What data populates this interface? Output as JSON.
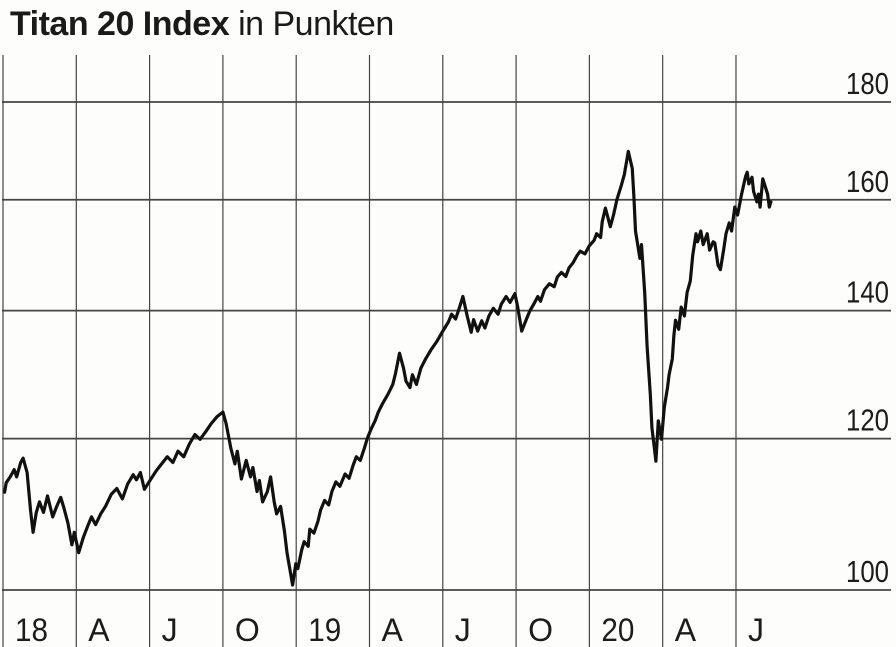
{
  "header": {
    "title": "Titan 20 Index",
    "subtitle": "in Punkten"
  },
  "chart_data": {
    "type": "line",
    "title": "Titan 20 Index",
    "subtitle": "in Punkten",
    "xlabel": "",
    "ylabel": "Punkten",
    "y_scale": "log",
    "y_axis_side": "right",
    "ylim": [
      100,
      190
    ],
    "y_ticks": [
      100,
      120,
      140,
      160,
      180
    ],
    "x_tick_labels": [
      "18",
      "A",
      "J",
      "O",
      "19",
      "A",
      "J",
      "O",
      "20",
      "A",
      "J"
    ],
    "x_tick_dates": [
      "2018-01-01",
      "2018-04-01",
      "2018-07-01",
      "2018-10-01",
      "2019-01-01",
      "2019-04-01",
      "2019-07-01",
      "2019-10-01",
      "2020-01-01",
      "2020-04-01",
      "2020-07-01"
    ],
    "grid": "on",
    "legend": "none",
    "line_color": "#111111",
    "grid_color": "#444444",
    "text_color": "#1c1c1c",
    "series": [
      {
        "name": "Titan 20 Index",
        "points": [
          [
            "2018-01-03",
            112.5
          ],
          [
            "2018-01-05",
            113.8
          ],
          [
            "2018-01-10",
            114.6
          ],
          [
            "2018-01-15",
            115.6
          ],
          [
            "2018-01-18",
            114.6
          ],
          [
            "2018-01-23",
            116.6
          ],
          [
            "2018-01-26",
            117.2
          ],
          [
            "2018-01-31",
            115.2
          ],
          [
            "2018-02-05",
            110.0
          ],
          [
            "2018-02-08",
            107.2
          ],
          [
            "2018-02-12",
            109.8
          ],
          [
            "2018-02-16",
            111.2
          ],
          [
            "2018-02-21",
            109.8
          ],
          [
            "2018-02-26",
            112.0
          ],
          [
            "2018-03-02",
            109.2
          ],
          [
            "2018-03-07",
            110.6
          ],
          [
            "2018-03-12",
            111.8
          ],
          [
            "2018-03-16",
            110.4
          ],
          [
            "2018-03-21",
            108.4
          ],
          [
            "2018-03-26",
            105.6
          ],
          [
            "2018-03-29",
            107.2
          ],
          [
            "2018-04-04",
            104.6
          ],
          [
            "2018-04-10",
            106.6
          ],
          [
            "2018-04-16",
            108.2
          ],
          [
            "2018-04-20",
            109.2
          ],
          [
            "2018-04-25",
            108.2
          ],
          [
            "2018-05-01",
            109.6
          ],
          [
            "2018-05-07",
            110.6
          ],
          [
            "2018-05-14",
            112.2
          ],
          [
            "2018-05-21",
            113.0
          ],
          [
            "2018-05-28",
            111.6
          ],
          [
            "2018-06-04",
            113.6
          ],
          [
            "2018-06-11",
            114.9
          ],
          [
            "2018-06-15",
            114.2
          ],
          [
            "2018-06-20",
            115.2
          ],
          [
            "2018-06-25",
            112.9
          ],
          [
            "2018-07-02",
            114.2
          ],
          [
            "2018-07-09",
            115.4
          ],
          [
            "2018-07-16",
            116.4
          ],
          [
            "2018-07-23",
            117.4
          ],
          [
            "2018-07-30",
            116.6
          ],
          [
            "2018-08-06",
            118.2
          ],
          [
            "2018-08-13",
            117.4
          ],
          [
            "2018-08-20",
            119.2
          ],
          [
            "2018-08-27",
            120.6
          ],
          [
            "2018-09-03",
            119.9
          ],
          [
            "2018-09-10",
            121.0
          ],
          [
            "2018-09-17",
            122.2
          ],
          [
            "2018-09-24",
            123.2
          ],
          [
            "2018-10-01",
            123.9
          ],
          [
            "2018-10-05",
            122.2
          ],
          [
            "2018-10-11",
            118.6
          ],
          [
            "2018-10-16",
            116.4
          ],
          [
            "2018-10-19",
            118.2
          ],
          [
            "2018-10-24",
            114.3
          ],
          [
            "2018-10-30",
            116.9
          ],
          [
            "2018-11-05",
            114.6
          ],
          [
            "2018-11-08",
            115.9
          ],
          [
            "2018-11-13",
            112.6
          ],
          [
            "2018-11-16",
            114.1
          ],
          [
            "2018-11-20",
            111.2
          ],
          [
            "2018-11-26",
            112.6
          ],
          [
            "2018-11-30",
            114.6
          ],
          [
            "2018-12-04",
            111.2
          ],
          [
            "2018-12-07",
            109.6
          ],
          [
            "2018-12-12",
            110.6
          ],
          [
            "2018-12-17",
            107.2
          ],
          [
            "2018-12-20",
            104.6
          ],
          [
            "2018-12-27",
            100.6
          ],
          [
            "2018-12-31",
            103.2
          ],
          [
            "2019-01-03",
            102.6
          ],
          [
            "2019-01-08",
            105.0
          ],
          [
            "2019-01-11",
            106.0
          ],
          [
            "2019-01-16",
            105.4
          ],
          [
            "2019-01-18",
            107.6
          ],
          [
            "2019-01-23",
            107.1
          ],
          [
            "2019-01-28",
            108.6
          ],
          [
            "2019-02-01",
            110.1
          ],
          [
            "2019-02-06",
            111.4
          ],
          [
            "2019-02-11",
            110.8
          ],
          [
            "2019-02-15",
            112.6
          ],
          [
            "2019-02-20",
            113.9
          ],
          [
            "2019-02-25",
            113.3
          ],
          [
            "2019-03-01",
            115.0
          ],
          [
            "2019-03-06",
            114.4
          ],
          [
            "2019-03-11",
            116.2
          ],
          [
            "2019-03-15",
            117.4
          ],
          [
            "2019-03-20",
            116.9
          ],
          [
            "2019-03-25",
            118.6
          ],
          [
            "2019-03-29",
            120.1
          ],
          [
            "2019-04-03",
            121.4
          ],
          [
            "2019-04-08",
            122.6
          ],
          [
            "2019-04-12",
            123.9
          ],
          [
            "2019-04-17",
            125.1
          ],
          [
            "2019-04-24",
            126.6
          ],
          [
            "2019-04-30",
            128.1
          ],
          [
            "2019-05-03",
            129.8
          ],
          [
            "2019-05-08",
            133.0
          ],
          [
            "2019-05-13",
            130.6
          ],
          [
            "2019-05-16",
            128.6
          ],
          [
            "2019-05-21",
            127.6
          ],
          [
            "2019-05-24",
            129.6
          ],
          [
            "2019-05-29",
            128.1
          ],
          [
            "2019-06-04",
            130.6
          ],
          [
            "2019-06-10",
            132.1
          ],
          [
            "2019-06-17",
            133.6
          ],
          [
            "2019-06-24",
            134.9
          ],
          [
            "2019-07-01",
            136.6
          ],
          [
            "2019-07-08",
            138.1
          ],
          [
            "2019-07-12",
            139.4
          ],
          [
            "2019-07-17",
            138.6
          ],
          [
            "2019-07-22",
            140.6
          ],
          [
            "2019-07-26",
            142.4
          ],
          [
            "2019-08-01",
            139.1
          ],
          [
            "2019-08-06",
            136.4
          ],
          [
            "2019-08-09",
            138.5
          ],
          [
            "2019-08-14",
            136.6
          ],
          [
            "2019-08-19",
            138.3
          ],
          [
            "2019-08-23",
            137.1
          ],
          [
            "2019-08-28",
            139.1
          ],
          [
            "2019-09-03",
            140.4
          ],
          [
            "2019-09-09",
            139.4
          ],
          [
            "2019-09-13",
            141.1
          ],
          [
            "2019-09-19",
            142.4
          ],
          [
            "2019-09-24",
            141.4
          ],
          [
            "2019-09-30",
            142.9
          ],
          [
            "2019-10-03",
            140.6
          ],
          [
            "2019-10-08",
            136.6
          ],
          [
            "2019-10-14",
            138.6
          ],
          [
            "2019-10-18",
            139.9
          ],
          [
            "2019-10-23",
            141.1
          ],
          [
            "2019-10-28",
            142.4
          ],
          [
            "2019-11-01",
            141.6
          ],
          [
            "2019-11-06",
            143.6
          ],
          [
            "2019-11-12",
            144.6
          ],
          [
            "2019-11-18",
            144.1
          ],
          [
            "2019-11-22",
            145.8
          ],
          [
            "2019-11-27",
            146.6
          ],
          [
            "2019-12-02",
            145.9
          ],
          [
            "2019-12-06",
            147.4
          ],
          [
            "2019-12-11",
            148.3
          ],
          [
            "2019-12-16",
            149.6
          ],
          [
            "2019-12-20",
            150.4
          ],
          [
            "2019-12-26",
            149.9
          ],
          [
            "2019-12-31",
            151.3
          ],
          [
            "2020-01-07",
            152.4
          ],
          [
            "2020-01-10",
            153.6
          ],
          [
            "2020-01-15",
            152.9
          ],
          [
            "2020-01-17",
            155.8
          ],
          [
            "2020-01-21",
            158.4
          ],
          [
            "2020-01-27",
            154.9
          ],
          [
            "2020-01-31",
            157.1
          ],
          [
            "2020-02-05",
            160.1
          ],
          [
            "2020-02-10",
            162.6
          ],
          [
            "2020-02-14",
            164.9
          ],
          [
            "2020-02-19",
            169.6
          ],
          [
            "2020-02-24",
            166.1
          ],
          [
            "2020-02-26",
            160.6
          ],
          [
            "2020-02-28",
            154.1
          ],
          [
            "2020-03-03",
            149.1
          ],
          [
            "2020-03-05",
            151.6
          ],
          [
            "2020-03-09",
            143.1
          ],
          [
            "2020-03-12",
            134.1
          ],
          [
            "2020-03-16",
            126.6
          ],
          [
            "2020-03-18",
            121.6
          ],
          [
            "2020-03-23",
            116.8
          ],
          [
            "2020-03-26",
            122.6
          ],
          [
            "2020-03-30",
            119.9
          ],
          [
            "2020-04-03",
            124.6
          ],
          [
            "2020-04-07",
            127.6
          ],
          [
            "2020-04-09",
            129.6
          ],
          [
            "2020-04-13",
            132.1
          ],
          [
            "2020-04-15",
            135.9
          ],
          [
            "2020-04-17",
            138.4
          ],
          [
            "2020-04-21",
            136.9
          ],
          [
            "2020-04-24",
            140.6
          ],
          [
            "2020-04-28",
            139.1
          ],
          [
            "2020-05-01",
            143.1
          ],
          [
            "2020-05-05",
            145.1
          ],
          [
            "2020-05-08",
            149.6
          ],
          [
            "2020-05-12",
            153.6
          ],
          [
            "2020-05-14",
            152.1
          ],
          [
            "2020-05-18",
            154.1
          ],
          [
            "2020-05-21",
            151.6
          ],
          [
            "2020-05-26",
            153.6
          ],
          [
            "2020-05-29",
            150.6
          ],
          [
            "2020-06-03",
            152.1
          ],
          [
            "2020-06-05",
            151.9
          ],
          [
            "2020-06-09",
            147.9
          ],
          [
            "2020-06-12",
            147.1
          ],
          [
            "2020-06-16",
            150.6
          ],
          [
            "2020-06-19",
            153.6
          ],
          [
            "2020-06-23",
            155.6
          ],
          [
            "2020-06-26",
            154.1
          ],
          [
            "2020-06-30",
            158.6
          ],
          [
            "2020-07-03",
            157.1
          ],
          [
            "2020-07-08",
            161.1
          ],
          [
            "2020-07-13",
            164.6
          ],
          [
            "2020-07-15",
            165.4
          ],
          [
            "2020-07-17",
            163.1
          ],
          [
            "2020-07-21",
            164.4
          ],
          [
            "2020-07-23",
            161.6
          ],
          [
            "2020-07-27",
            159.6
          ],
          [
            "2020-07-29",
            161.1
          ],
          [
            "2020-07-31",
            158.6
          ],
          [
            "2020-08-04",
            164.1
          ],
          [
            "2020-08-06",
            163.1
          ],
          [
            "2020-08-10",
            161.1
          ],
          [
            "2020-08-12",
            158.6
          ],
          [
            "2020-08-14",
            159.6
          ]
        ]
      }
    ]
  }
}
